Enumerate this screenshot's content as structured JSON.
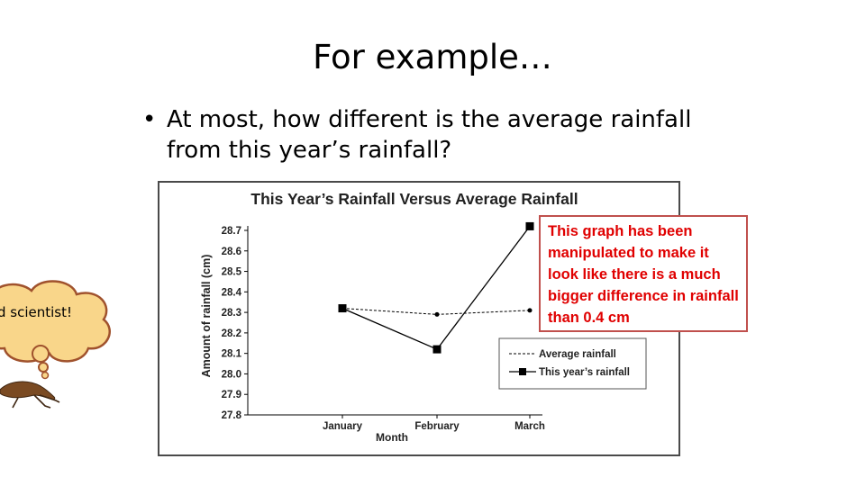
{
  "slide": {
    "title": "For example…",
    "bullet_marker": "•",
    "bullet": "At most, how different is the average rainfall from this year’s rainfall?"
  },
  "callout": {
    "text": "This graph has been manipulated to make it look like there is a much bigger difference in rainfall than 0.4 cm"
  },
  "thought_bubble": {
    "text": "d scientist!"
  },
  "chart_data": {
    "type": "line",
    "title": "This Year’s Rainfall Versus Average Rainfall",
    "xlabel": "Month",
    "ylabel": "Amount of rainfall (cm)",
    "categories": [
      "January",
      "February",
      "March"
    ],
    "ylim": [
      27.8,
      28.7
    ],
    "yticks": [
      27.8,
      27.9,
      28.0,
      28.1,
      28.2,
      28.3,
      28.4,
      28.5,
      28.6,
      28.7
    ],
    "grid": false,
    "legend_position": "bottom-right",
    "series": [
      {
        "name": "Average rainfall",
        "values": [
          28.32,
          28.29,
          28.31
        ],
        "style": "dashed",
        "color": "#000000"
      },
      {
        "name": "This year’s rainfall",
        "values": [
          28.32,
          28.12,
          28.72
        ],
        "style": "solid",
        "color": "#000000"
      }
    ],
    "accent_color": "#c0504d",
    "callout_text_color": "#e00000"
  }
}
